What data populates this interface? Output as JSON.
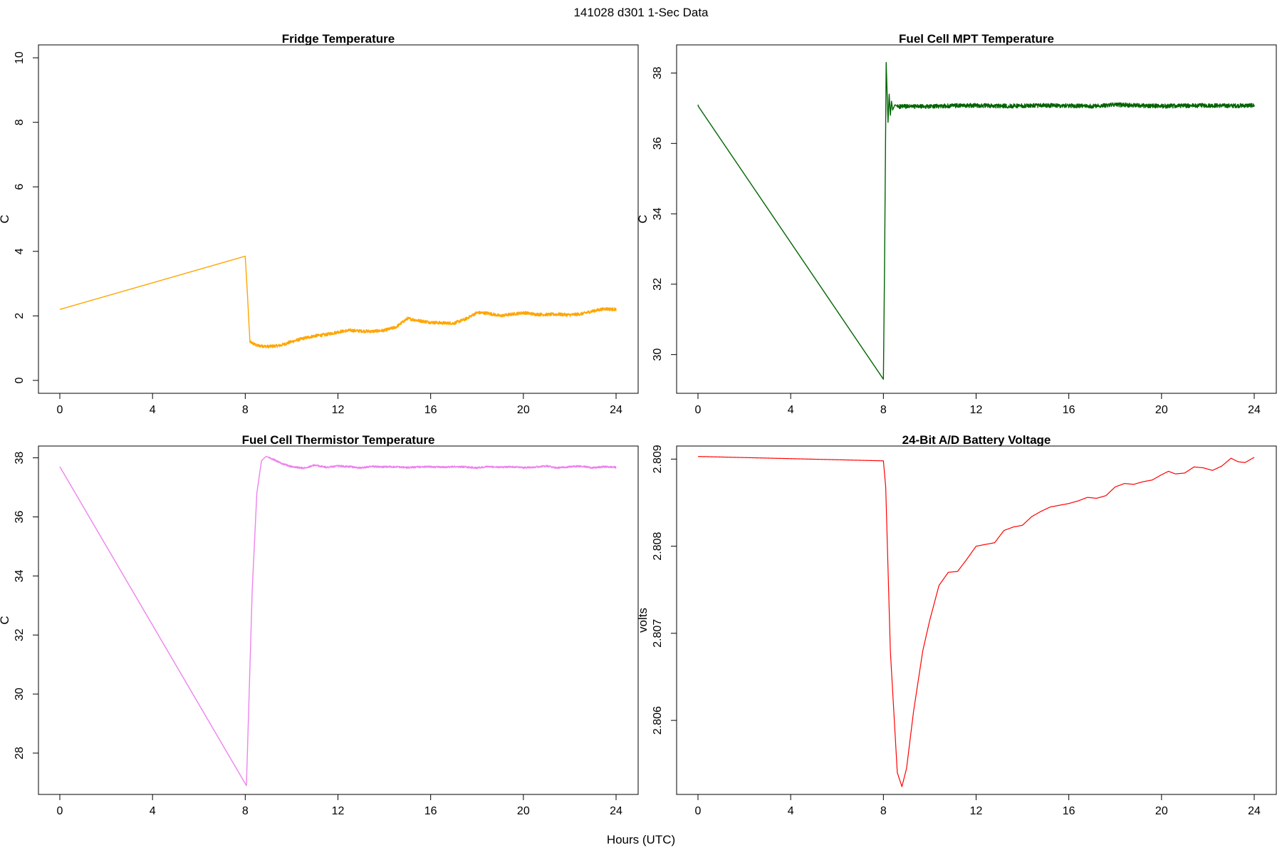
{
  "figure": {
    "title": "141028   d301   1-Sec Data",
    "xlabel": "Hours (UTC)"
  },
  "chart_data": [
    {
      "type": "line",
      "title": "Fridge Temperature",
      "xlabel": "",
      "ylabel": "C",
      "xlim": [
        0,
        24
      ],
      "ylim": [
        -0.4,
        10.4
      ],
      "xticks": [
        0,
        4,
        8,
        12,
        16,
        20,
        24
      ],
      "yticks": [
        0,
        2,
        4,
        6,
        8,
        10
      ],
      "color": "#FFA500",
      "noise": 0.05,
      "noise_start": 8.15,
      "series": [
        {
          "x": [
            0,
            8.0,
            8.1,
            8.2,
            8.5,
            9.0,
            9.5,
            10.0,
            10.5,
            11.0,
            11.5,
            12.0,
            12.5,
            13.0,
            13.5,
            14.0,
            14.5,
            15.0,
            15.5,
            16.0,
            16.5,
            17.0,
            17.5,
            18.0,
            18.5,
            19.0,
            19.5,
            20.0,
            20.5,
            21.0,
            21.5,
            22.0,
            22.5,
            23.0,
            23.5,
            24.0
          ],
          "y": [
            2.2,
            3.85,
            2.6,
            1.2,
            1.08,
            1.05,
            1.08,
            1.2,
            1.3,
            1.38,
            1.42,
            1.5,
            1.55,
            1.53,
            1.52,
            1.55,
            1.65,
            1.92,
            1.85,
            1.8,
            1.78,
            1.77,
            1.9,
            2.1,
            2.08,
            2.0,
            2.05,
            2.1,
            2.05,
            2.04,
            2.05,
            2.03,
            2.06,
            2.15,
            2.22,
            2.2
          ]
        }
      ]
    },
    {
      "type": "line",
      "title": "Fuel Cell MPT Temperature",
      "xlabel": "",
      "ylabel": "C",
      "xlim": [
        0,
        24
      ],
      "ylim": [
        28.9,
        38.8
      ],
      "xticks": [
        0,
        4,
        8,
        12,
        16,
        20,
        24
      ],
      "yticks": [
        30,
        32,
        34,
        36,
        38
      ],
      "color": "#006400",
      "noise": 0.06,
      "noise_start": 8.6,
      "series": [
        {
          "x": [
            0,
            0.02,
            8.0,
            8.05,
            8.12,
            8.2,
            8.25,
            8.3,
            8.35,
            8.4,
            8.5,
            8.6,
            9.0,
            10,
            11,
            12,
            13,
            14,
            15,
            16,
            17,
            18,
            19,
            20,
            21,
            22,
            23,
            24
          ],
          "y": [
            37.1,
            37.05,
            29.3,
            32.5,
            38.3,
            36.6,
            37.4,
            36.8,
            37.2,
            36.95,
            37.1,
            37.05,
            37.05,
            37.05,
            37.07,
            37.08,
            37.06,
            37.07,
            37.08,
            37.07,
            37.06,
            37.1,
            37.08,
            37.06,
            37.07,
            37.08,
            37.07,
            37.08
          ]
        }
      ]
    },
    {
      "type": "line",
      "title": "Fuel Cell Thermistor Temperature",
      "xlabel": "",
      "ylabel": "C",
      "xlim": [
        0,
        24
      ],
      "ylim": [
        26.6,
        38.4
      ],
      "xticks": [
        0,
        4,
        8,
        12,
        16,
        20,
        24
      ],
      "yticks": [
        28,
        30,
        32,
        34,
        36,
        38
      ],
      "color": "#EE82EE",
      "noise": 0.03,
      "noise_start": 9.0,
      "series": [
        {
          "x": [
            0,
            8.05,
            8.15,
            8.3,
            8.5,
            8.7,
            8.9,
            9.2,
            9.6,
            10.0,
            10.5,
            11.0,
            11.5,
            12.0,
            12.5,
            13.0,
            13.5,
            14.0,
            14.5,
            15.0,
            15.5,
            16.0,
            16.5,
            17.0,
            17.5,
            18.0,
            18.5,
            19.0,
            19.5,
            20.0,
            20.5,
            21.0,
            21.5,
            22.0,
            22.5,
            23.0,
            23.5,
            24.0
          ],
          "y": [
            37.7,
            26.9,
            29.5,
            33.5,
            36.8,
            37.9,
            38.05,
            37.95,
            37.8,
            37.7,
            37.65,
            37.75,
            37.68,
            37.72,
            37.7,
            37.66,
            37.71,
            37.69,
            37.7,
            37.67,
            37.69,
            37.7,
            37.68,
            37.7,
            37.69,
            37.66,
            37.7,
            37.68,
            37.7,
            37.67,
            37.69,
            37.72,
            37.66,
            37.7,
            37.72,
            37.66,
            37.7,
            37.68
          ]
        }
      ]
    },
    {
      "type": "line",
      "title": "24-Bit A/D Battery Voltage",
      "xlabel": "",
      "ylabel": "volts",
      "xlim": [
        0,
        24
      ],
      "ylim": [
        2.80515,
        2.80915
      ],
      "xticks": [
        0,
        4,
        8,
        12,
        16,
        20,
        24
      ],
      "yticks": [
        2.806,
        2.807,
        2.808,
        2.809
      ],
      "color": "#FF0000",
      "noise": 0,
      "noise_start": 24,
      "series": [
        {
          "x": [
            0,
            8.0,
            8.1,
            8.3,
            8.6,
            8.8,
            9.0,
            9.3,
            9.7,
            10.0,
            10.4,
            10.8,
            11.2,
            11.6,
            12.0,
            12.4,
            12.8,
            13.2,
            13.6,
            14.0,
            14.4,
            14.8,
            15.2,
            15.6,
            16.0,
            16.4,
            16.8,
            17.2,
            17.6,
            18.0,
            18.4,
            18.8,
            19.2,
            19.6,
            20.0,
            20.3,
            20.6,
            21.0,
            21.4,
            21.8,
            22.2,
            22.6,
            23.0,
            23.3,
            23.6,
            24.0
          ],
          "y": [
            2.80903,
            2.80898,
            2.80868,
            2.8068,
            2.8054,
            2.80524,
            2.80545,
            2.8061,
            2.8068,
            2.80715,
            2.80755,
            2.8077,
            2.80771,
            2.80785,
            2.808,
            2.80802,
            2.80804,
            2.80818,
            2.80822,
            2.80824,
            2.80834,
            2.8084,
            2.80845,
            2.80847,
            2.80849,
            2.80852,
            2.80856,
            2.80855,
            2.80858,
            2.80868,
            2.80872,
            2.80871,
            2.80874,
            2.80876,
            2.80882,
            2.80886,
            2.80883,
            2.80884,
            2.80891,
            2.8089,
            2.80887,
            2.80892,
            2.80901,
            2.80897,
            2.80896,
            2.80902
          ]
        }
      ]
    }
  ]
}
